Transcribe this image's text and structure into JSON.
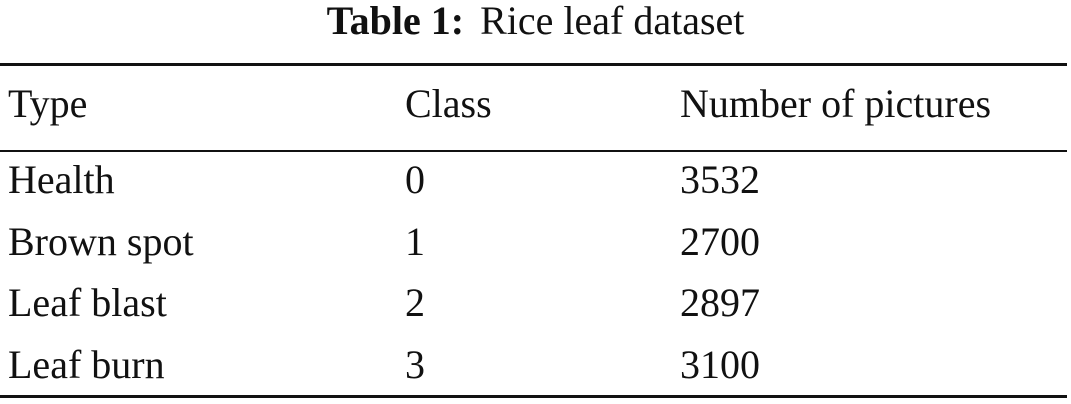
{
  "caption": {
    "label": "Table 1:",
    "text": "Rice leaf dataset"
  },
  "table": {
    "header": [
      "Type",
      "Class",
      "Number of pictures"
    ],
    "rows": [
      [
        "Health",
        0,
        3532
      ],
      [
        "Brown spot",
        1,
        2700
      ],
      [
        "Leaf blast",
        2,
        2897
      ],
      [
        "Leaf burn",
        3,
        3100
      ]
    ]
  }
}
